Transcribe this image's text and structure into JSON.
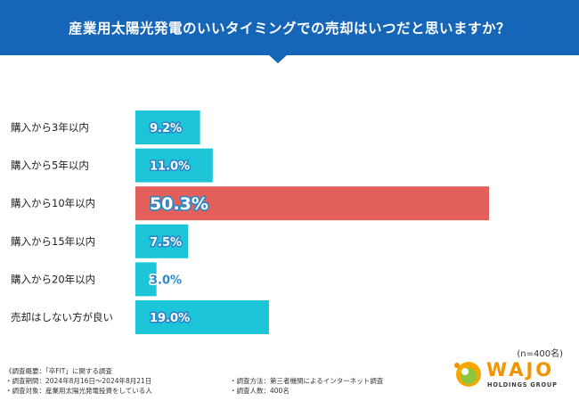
{
  "header": {
    "title": "産業用太陽光発電のいいタイミングでの売却はいつだと思いますか？"
  },
  "chart_data": {
    "type": "bar",
    "orientation": "horizontal",
    "title": "産業用太陽光発電のいいタイミングでの売却はいつだと思いますか？",
    "categories": [
      "購入から3年以内",
      "購入から5年以内",
      "購入から10年以内",
      "購入から15年以内",
      "購入から20年以内",
      "売却はしない方が良い"
    ],
    "values": [
      9.2,
      11.0,
      50.3,
      7.5,
      3.0,
      19.0
    ],
    "value_labels": [
      "9.2%",
      "11.0%",
      "50.3%",
      "7.5%",
      "3.0%",
      "19.0%"
    ],
    "unit": "%",
    "highlight_index": 2,
    "xlim": [
      0,
      50.3
    ],
    "colors": {
      "default": "#1cc6d8",
      "highlight": "#e25f5a",
      "label_text": "#ffffff",
      "label_outline": "#2a88c9"
    }
  },
  "sample_size": "(n=400名)",
  "survey_notes": {
    "overview": "《調査概要：「卒FIT」に関する調査",
    "period": "・調査期間：2024年8月16日～2024年8月21日",
    "target": "・調査対象：産業用太陽光発電投資をしている人",
    "method": "・調査方法：第三者機関によるインターネット調査",
    "count": "・調査人数：400名"
  },
  "logo": {
    "name": "WAJO",
    "subtitle": "HOLDINGS GROUP"
  }
}
